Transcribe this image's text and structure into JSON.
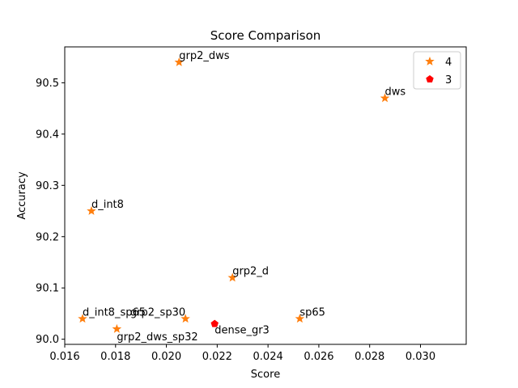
{
  "chart_data": {
    "type": "scatter",
    "title": "Score Comparison",
    "xlabel": "Score",
    "ylabel": "Accuracy",
    "xlim": [
      0.016,
      0.0318
    ],
    "ylim": [
      89.99,
      90.57
    ],
    "xticks": [
      0.016,
      0.018,
      0.02,
      0.022,
      0.024,
      0.026,
      0.028,
      0.03
    ],
    "xtick_labels": [
      "0.016",
      "0.018",
      "0.020",
      "0.022",
      "0.024",
      "0.026",
      "0.028",
      "0.030"
    ],
    "yticks": [
      90.0,
      90.1,
      90.2,
      90.3,
      90.4,
      90.5
    ],
    "ytick_labels": [
      "90.0",
      "90.1",
      "90.2",
      "90.3",
      "90.4",
      "90.5"
    ],
    "grid": false,
    "legend_position": "top-right",
    "series": [
      {
        "name": "4",
        "marker": "star",
        "color": "#ff7f0e",
        "points": [
          {
            "label": "grp2_dws",
            "x": 0.0205,
            "y": 90.54
          },
          {
            "label": "dws",
            "x": 0.0286,
            "y": 90.47
          },
          {
            "label": "d_int8",
            "x": 0.01705,
            "y": 90.25
          },
          {
            "label": "grp2_d",
            "x": 0.0226,
            "y": 90.12
          },
          {
            "label": "d_int8_sp65",
            "x": 0.0167,
            "y": 90.04
          },
          {
            "label": "grp2_sp30",
            "x": 0.02075,
            "y": 90.04
          },
          {
            "label": "sp65",
            "x": 0.02525,
            "y": 90.04
          },
          {
            "label": "grp2_dws_sp32",
            "x": 0.01805,
            "y": 90.02
          }
        ]
      },
      {
        "name": "3",
        "marker": "pentagon",
        "color": "#ff0000",
        "points": [
          {
            "label": "dense_gr3",
            "x": 0.0219,
            "y": 90.03
          }
        ]
      }
    ]
  }
}
